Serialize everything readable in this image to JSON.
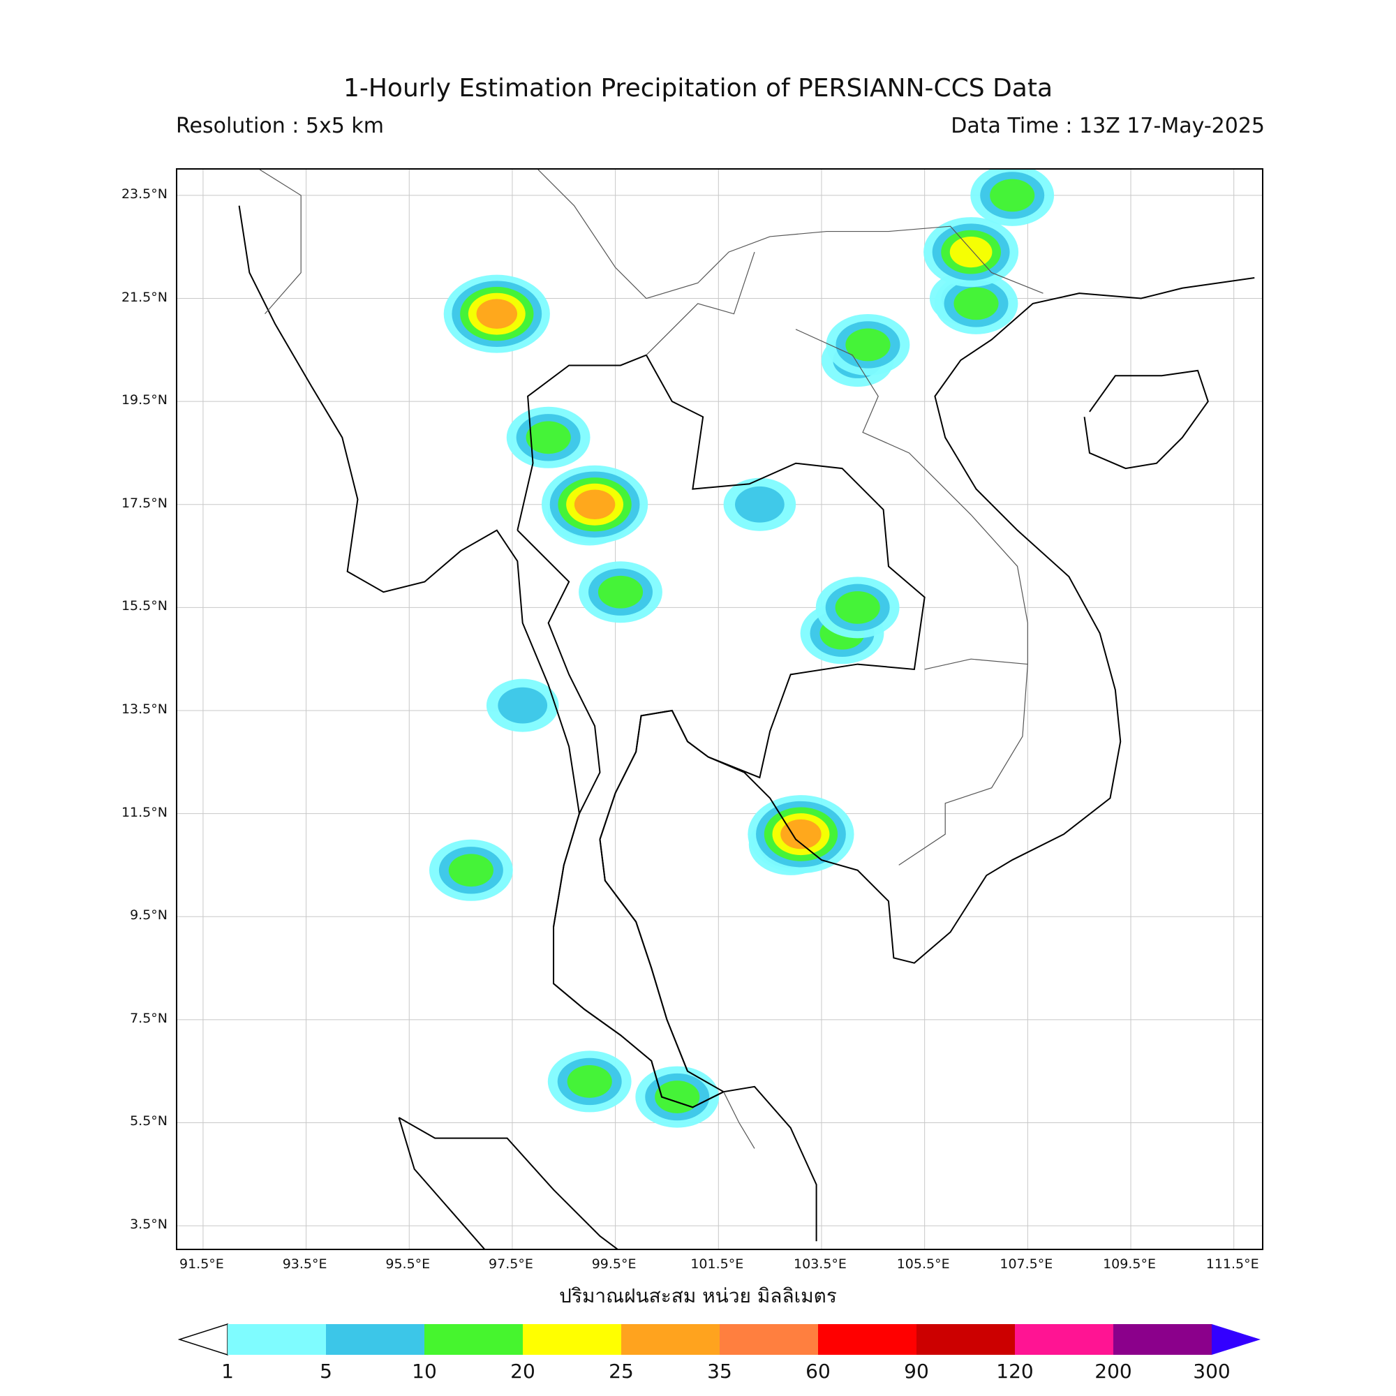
{
  "header": {
    "title": "1-Hourly Estimation Precipitation of PERSIANN-CCS Data",
    "resolution": "Resolution : 5x5 km",
    "data_time": "Data Time : 13Z 17-May-2025"
  },
  "map": {
    "lat_labels": [
      "23.5°N",
      "21.5°N",
      "19.5°N",
      "17.5°N",
      "15.5°N",
      "13.5°N",
      "11.5°N",
      "9.5°N",
      "7.5°N",
      "5.5°N",
      "3.5°N"
    ],
    "lon_labels": [
      "91.5°E",
      "93.5°E",
      "95.5°E",
      "97.5°E",
      "99.5°E",
      "101.5°E",
      "103.5°E",
      "105.5°E",
      "107.5°E",
      "109.5°E",
      "111.5°E"
    ],
    "lat_values": [
      23.5,
      21.5,
      19.5,
      17.5,
      15.5,
      13.5,
      11.5,
      9.5,
      7.5,
      5.5,
      3.5
    ],
    "lon_values": [
      91.5,
      93.5,
      95.5,
      97.5,
      99.5,
      101.5,
      103.5,
      105.5,
      107.5,
      109.5,
      111.5
    ],
    "extent": {
      "lon_min": 91.0,
      "lon_max": 112.1,
      "lat_min": 3.0,
      "lat_max": 24.0
    },
    "axis_title": "ปริมาณฝนสะสม หน่วย มิลลิเมตร",
    "precip_cells": [
      {
        "lon": 104.2,
        "lat": 20.3,
        "class": 5
      },
      {
        "lon": 104.4,
        "lat": 20.6,
        "class": 10
      },
      {
        "lon": 106.3,
        "lat": 21.5,
        "class": 5
      },
      {
        "lon": 106.5,
        "lat": 21.4,
        "class": 10
      },
      {
        "lon": 106.4,
        "lat": 22.4,
        "class": 20
      },
      {
        "lon": 107.2,
        "lat": 23.5,
        "class": 10
      },
      {
        "lon": 102.3,
        "lat": 17.5,
        "class": 5
      },
      {
        "lon": 99.0,
        "lat": 17.3,
        "class": 10
      },
      {
        "lon": 99.1,
        "lat": 17.5,
        "class": 25
      },
      {
        "lon": 99.6,
        "lat": 15.8,
        "class": 10
      },
      {
        "lon": 97.7,
        "lat": 13.6,
        "class": 5
      },
      {
        "lon": 102.9,
        "lat": 10.9,
        "class": 10
      },
      {
        "lon": 103.1,
        "lat": 11.1,
        "class": 25
      },
      {
        "lon": 103.9,
        "lat": 15.0,
        "class": 10
      },
      {
        "lon": 104.2,
        "lat": 15.5,
        "class": 10
      },
      {
        "lon": 99.0,
        "lat": 6.3,
        "class": 10
      },
      {
        "lon": 97.2,
        "lat": 21.2,
        "class": 25
      },
      {
        "lon": 98.2,
        "lat": 18.8,
        "class": 10
      },
      {
        "lon": 96.7,
        "lat": 10.4,
        "class": 10
      },
      {
        "lon": 100.7,
        "lat": 6.0,
        "class": 10
      }
    ]
  },
  "colorbar": {
    "ticks": [
      "1",
      "5",
      "10",
      "20",
      "25",
      "35",
      "60",
      "90",
      "120",
      "200",
      "300"
    ],
    "colors": [
      "#7ffcff",
      "#3cc6e8",
      "#46f52e",
      "#ffff00",
      "#ffa31e",
      "#ff7f3f",
      "#ff0000",
      "#cc0000",
      "#ff1493",
      "#8b008b"
    ],
    "over_color": "#3300ff",
    "under_color": "#ffffff"
  }
}
